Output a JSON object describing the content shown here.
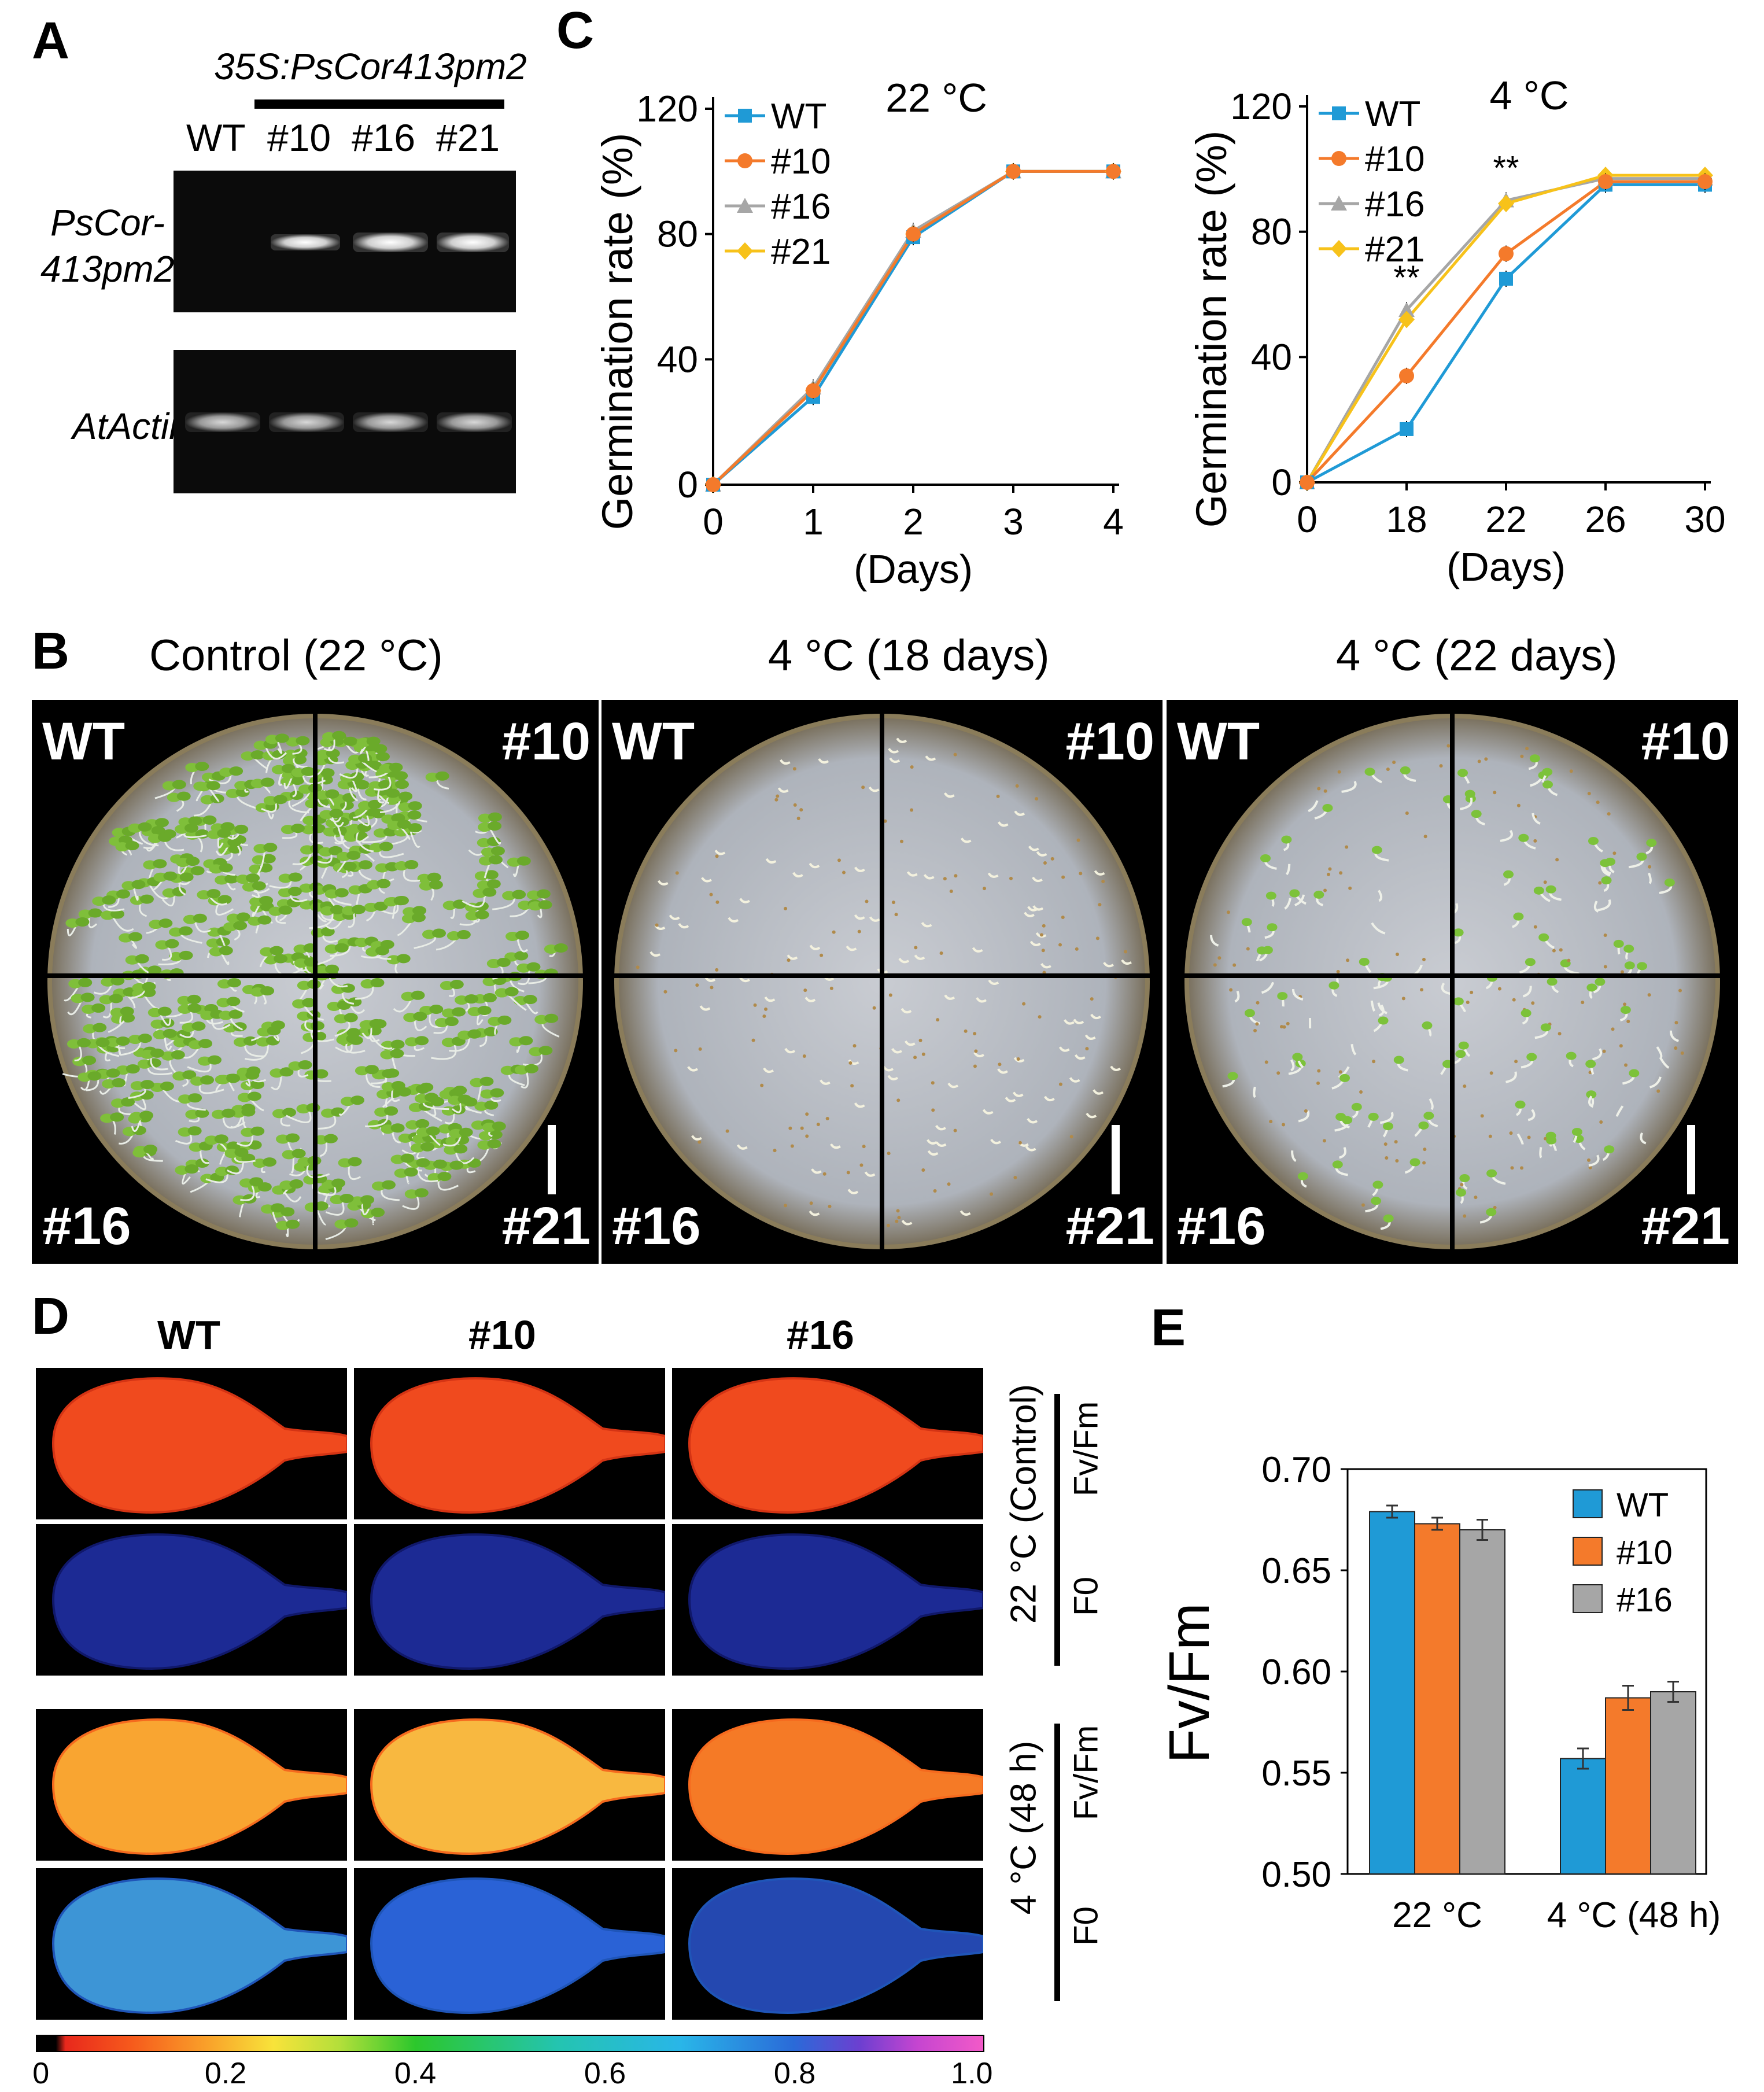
{
  "panelA": {
    "label": "A",
    "construct": "35S:PsCor413pm2",
    "lanes": [
      "WT",
      "#10",
      "#16",
      "#21"
    ],
    "gene1_line1": "PsCor-",
    "gene1_line2": "413pm2",
    "gene2": "AtActin"
  },
  "panelB": {
    "label": "B",
    "titles": [
      "Control (22 °C)",
      "4 °C (18 days)",
      "4 °C (22 days)"
    ],
    "quadrants": [
      "WT",
      "#10",
      "#16",
      "#21"
    ]
  },
  "panelC": {
    "label": "C"
  },
  "panelD": {
    "label": "D",
    "columns": [
      "WT",
      "#10",
      "#16"
    ],
    "cond1": "22 °C (Control)",
    "cond2": "4 °C (48 h)",
    "fvfm": "Fv/Fm",
    "f0": "F0",
    "scale_ticks": [
      "0",
      "0.2",
      "0.4",
      "0.6",
      "0.8",
      "1.0"
    ]
  },
  "panelE": {
    "label": "E"
  },
  "chart_data": [
    {
      "type": "line",
      "title": "22 °C",
      "xlabel": "(Days)",
      "ylabel": "Germination rate (%)",
      "x": [
        0,
        1,
        2,
        3,
        4
      ],
      "ylim": [
        0,
        120
      ],
      "yticks": [
        0,
        40,
        80,
        120
      ],
      "series": [
        {
          "name": "WT",
          "color": "#1f9ad6",
          "marker": "square",
          "values": [
            0,
            28,
            79,
            100,
            100
          ]
        },
        {
          "name": "#10",
          "color": "#f47a2b",
          "marker": "circle",
          "values": [
            0,
            30,
            80,
            100,
            100
          ]
        },
        {
          "name": "#16",
          "color": "#a6a6a6",
          "marker": "triangle",
          "values": [
            0,
            31,
            81,
            100,
            100
          ]
        },
        {
          "name": "#21",
          "color": "#f7c21a",
          "marker": "diamond",
          "values": [
            0,
            30,
            80,
            100,
            100
          ]
        }
      ],
      "annotations": []
    },
    {
      "type": "line",
      "title": "4 °C",
      "xlabel": "(Days)",
      "ylabel": "Germination rate (%)",
      "x": [
        0,
        18,
        22,
        26,
        30
      ],
      "ylim": [
        0,
        120
      ],
      "yticks": [
        0,
        40,
        80,
        120
      ],
      "series": [
        {
          "name": "WT",
          "color": "#1f9ad6",
          "marker": "square",
          "values": [
            0,
            17,
            65,
            95,
            95
          ]
        },
        {
          "name": "#10",
          "color": "#f47a2b",
          "marker": "circle",
          "values": [
            0,
            34,
            73,
            96,
            96
          ]
        },
        {
          "name": "#16",
          "color": "#a6a6a6",
          "marker": "triangle",
          "values": [
            0,
            55,
            90,
            97,
            97
          ]
        },
        {
          "name": "#21",
          "color": "#f7c21a",
          "marker": "diamond",
          "values": [
            0,
            52,
            89,
            98,
            98
          ]
        }
      ],
      "annotations": [
        {
          "x": 18,
          "text": "**"
        },
        {
          "x": 22,
          "text": "**"
        }
      ]
    },
    {
      "type": "bar",
      "title": "",
      "xlabel": "",
      "ylabel": "Fv/Fm",
      "categories": [
        "22 °C",
        "4 °C (48 h)"
      ],
      "ylim": [
        0.5,
        0.7
      ],
      "yticks": [
        "0.50",
        "0.55",
        "0.60",
        "0.65",
        "0.70"
      ],
      "series": [
        {
          "name": "WT",
          "color": "#1f9ad6",
          "values": [
            0.679,
            0.557
          ],
          "errors": [
            0.003,
            0.005
          ]
        },
        {
          "name": "#10",
          "color": "#f47a2b",
          "values": [
            0.673,
            0.587
          ],
          "errors": [
            0.003,
            0.006
          ]
        },
        {
          "name": "#16",
          "color": "#a6a6a6",
          "values": [
            0.67,
            0.59
          ],
          "errors": [
            0.005,
            0.005
          ]
        }
      ]
    }
  ]
}
